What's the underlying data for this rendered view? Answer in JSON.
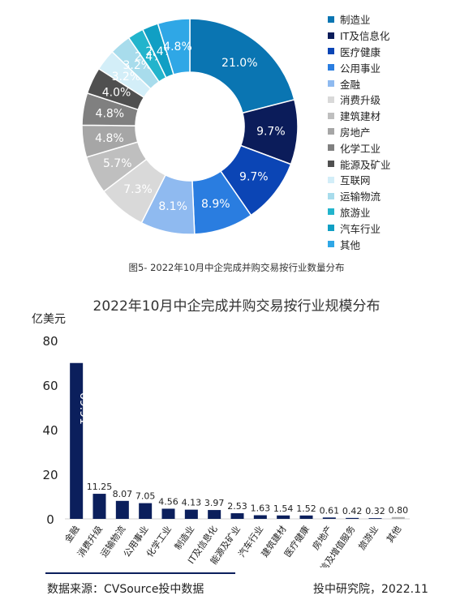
{
  "chart_data": [
    {
      "type": "pie",
      "caption": "图5- 2022年10月中企完成并购交易按行业数量分布",
      "slices": [
        {
          "label": "制造业",
          "value": 21.0,
          "text": "21.0%",
          "color": "#0a75b2"
        },
        {
          "label": "IT及信息化",
          "value": 9.7,
          "text": "9.7%",
          "color": "#0b1c5a"
        },
        {
          "label": "医疗健康",
          "value": 9.7,
          "text": "9.7%",
          "color": "#0b45b5"
        },
        {
          "label": "公用事业",
          "value": 8.9,
          "text": "8.9%",
          "color": "#2a7de0"
        },
        {
          "label": "金融",
          "value": 8.1,
          "text": "8.1%",
          "color": "#8fbaf0"
        },
        {
          "label": "消费升级",
          "value": 7.3,
          "text": "7.3%",
          "color": "#d9d9d9"
        },
        {
          "label": "建筑建材",
          "value": 5.7,
          "text": "5.7%",
          "color": "#bfbfbf"
        },
        {
          "label": "房地产",
          "value": 4.8,
          "text": "4.8%",
          "color": "#a6a6a6"
        },
        {
          "label": "化学工业",
          "value": 4.8,
          "text": "4.8%",
          "color": "#808080"
        },
        {
          "label": "能源及矿业",
          "value": 4.0,
          "text": "4.0%",
          "color": "#505050"
        },
        {
          "label": "互联网",
          "value": 3.2,
          "text": "3.2%",
          "color": "#d3eef8"
        },
        {
          "label": "运输物流",
          "value": 3.2,
          "text": "3.2%",
          "color": "#a8dcec"
        },
        {
          "label": "旅游业",
          "value": 2.4,
          "text": "2.4%",
          "color": "#22b4cc"
        },
        {
          "label": "汽车行业",
          "value": 2.4,
          "text": "2.4%",
          "color": "#109fc4"
        },
        {
          "label": "其他",
          "value": 4.8,
          "text": "4.8%",
          "color": "#2fa7e6"
        }
      ]
    },
    {
      "type": "bar",
      "title": "2022年10月中企完成并购交易按行业规模分布",
      "ylabel": "亿美元",
      "ylim": [
        0,
        80
      ],
      "yticks": [
        "0",
        "20",
        "40",
        "60",
        "80"
      ],
      "categories": [
        "金融",
        "消费升级",
        "运输物流",
        "公用事业",
        "化学工业",
        "制造业",
        "IT及信息化",
        "能源及矿业",
        "汽车行业",
        "建筑建材",
        "医疗健康",
        "房地产",
        "电信及增值服务",
        "旅游业",
        "其他"
      ],
      "values": [
        69.91,
        11.25,
        8.07,
        7.05,
        4.56,
        4.13,
        3.97,
        2.53,
        1.63,
        1.54,
        1.52,
        0.61,
        0.42,
        0.32,
        0.8
      ],
      "value_labels": [
        "69.91",
        "11.25",
        "8.07",
        "7.05",
        "4.56",
        "4.13",
        "3.97",
        "2.53",
        "1.63",
        "1.54",
        "1.52",
        "0.61",
        "0.42",
        "0.32",
        "0.80"
      ],
      "colors": {
        "bar": "#0b1f5c",
        "other_bar": "#b0b0b0"
      }
    }
  ],
  "footer": {
    "source": "数据来源：CVSource投中数据",
    "credit": "投中研究院，2022.11"
  }
}
